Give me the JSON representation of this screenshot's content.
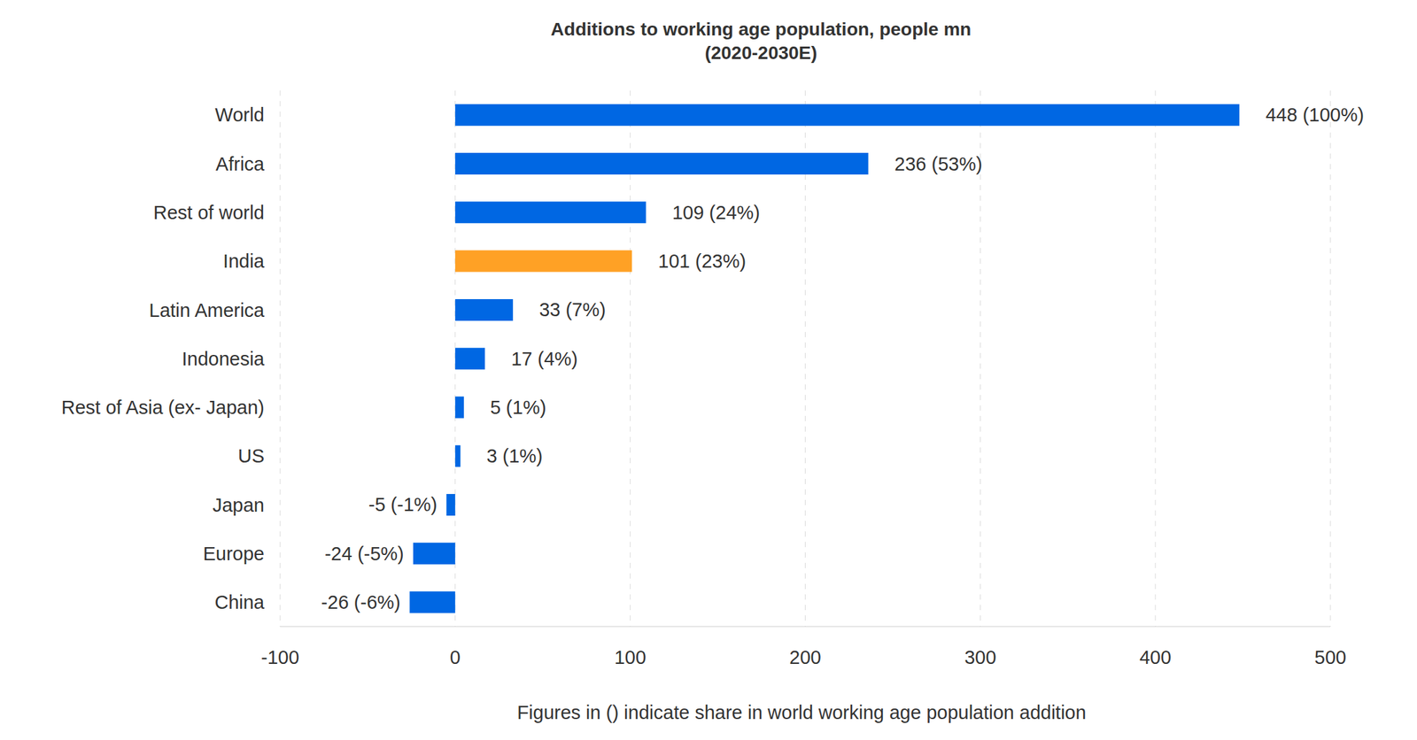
{
  "chart_data": {
    "type": "bar",
    "orientation": "horizontal",
    "title": "Additions to working age population, people mn",
    "subtitle": "(2020-2030E)",
    "x_label": "Figures in () indicate share in world working age population addition",
    "categories": [
      "World",
      "Africa",
      "Rest of world",
      "India",
      "Latin America",
      "Indonesia",
      "Rest of Asia (ex- Japan)",
      "US",
      "Japan",
      "Europe",
      "China"
    ],
    "values": [
      448,
      236,
      109,
      101,
      33,
      17,
      5,
      3,
      -5,
      -24,
      -26
    ],
    "value_labels": [
      "448 (100%)",
      "236 (53%)",
      "109 (24%)",
      "101 (23%)",
      "33 (7%)",
      "17 (4%)",
      "5 (1%)",
      "3 (1%)",
      "-5 (-1%)",
      "-24 (-5%)",
      "-26 (-6%)"
    ],
    "data_labels": true,
    "colors": [
      "#0067e3",
      "#0067e3",
      "#0067e3",
      "#ffa125",
      "#0067e3",
      "#0067e3",
      "#0067e3",
      "#0067e3",
      "#0067e3",
      "#0067e3",
      "#0067e3"
    ],
    "xlim": [
      -100,
      500
    ],
    "xticks": [
      -100,
      0,
      100,
      200,
      300,
      400,
      500
    ],
    "grid": true
  }
}
